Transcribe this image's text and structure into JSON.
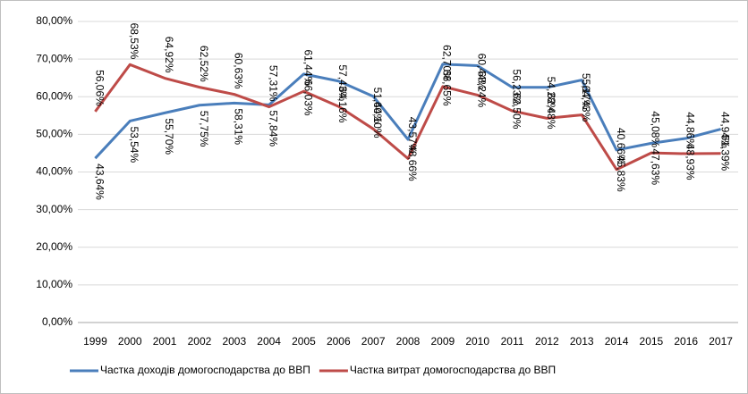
{
  "chart_data": {
    "type": "line",
    "categories": [
      "1999",
      "2000",
      "2001",
      "2002",
      "2003",
      "2004",
      "2005",
      "2006",
      "2007",
      "2008",
      "2009",
      "2010",
      "2011",
      "2012",
      "2013",
      "2014",
      "2015",
      "2016",
      "2017"
    ],
    "series": [
      {
        "name": "Частка доходів домогосподарства до ВВП",
        "color": "#4a7ebb",
        "values": [
          43.64,
          53.54,
          55.7,
          57.75,
          58.31,
          57.84,
          66.03,
          64.16,
          60.1,
          48.66,
          68.65,
          68.24,
          62.5,
          62.48,
          64.43,
          45.83,
          47.63,
          48.93,
          51.39
        ],
        "value_labels": [
          "43,64%",
          "53,54%",
          "55,70%",
          "57,75%",
          "58,31%",
          "57,84%",
          "66,03%",
          "64,16%",
          "60,10%",
          "48,66%",
          "68,65%",
          "68,24%",
          "62,50%",
          "62,48%",
          "64,43%",
          "45,83%",
          "47,63%",
          "48,93%",
          "51,39%"
        ]
      },
      {
        "name": "Частка витрат домогосподарства до ВВП",
        "color": "#be4b48",
        "values": [
          56.06,
          68.53,
          64.92,
          62.52,
          60.63,
          57.31,
          61.44,
          57.43,
          51.44,
          43.57,
          62.7,
          60.44,
          56.23,
          54.28,
          55.17,
          40.66,
          45.08,
          44.86,
          44.94
        ],
        "value_labels": [
          "56,06%",
          "68,53%",
          "64,92%",
          "62,52%",
          "60,63%",
          "57,31%",
          "61,44%",
          "57,43%",
          "51,44%",
          "43,57%",
          "62,70%",
          "60,44%",
          "56,23%",
          "54,28%",
          "55,17%",
          "40,66%",
          "45,08%",
          "44,86%",
          "44,94%"
        ]
      }
    ],
    "ylim": [
      0,
      80
    ],
    "yticks": [
      {
        "value": 0,
        "label": "0,00%"
      },
      {
        "value": 10,
        "label": "10,00%"
      },
      {
        "value": 20,
        "label": "20,00%"
      },
      {
        "value": 30,
        "label": "30,00%"
      },
      {
        "value": 40,
        "label": "40,00%"
      },
      {
        "value": 50,
        "label": "50,00%"
      },
      {
        "value": 60,
        "label": "60,00%"
      },
      {
        "value": 70,
        "label": "70,00%"
      },
      {
        "value": 80,
        "label": "80,00%"
      }
    ],
    "grid": true,
    "legend": "bottom"
  }
}
